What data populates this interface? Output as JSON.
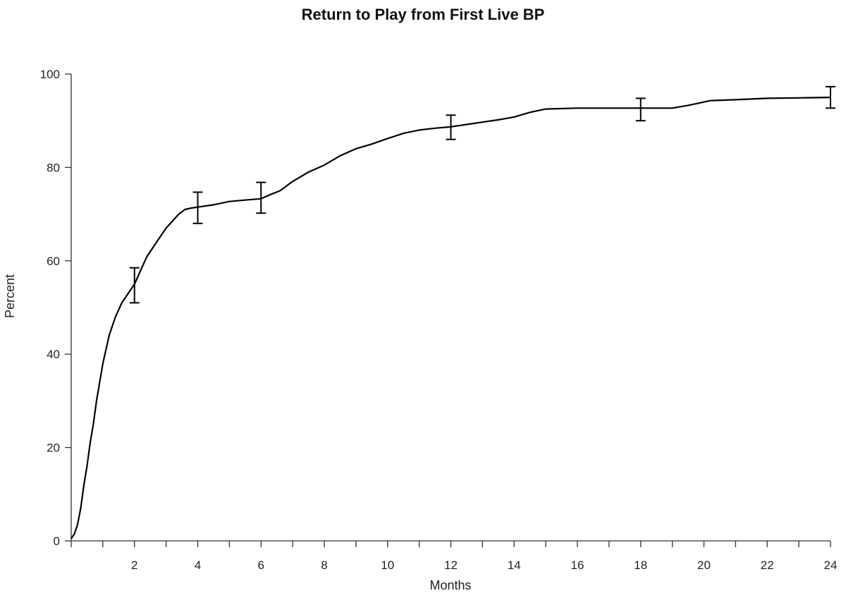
{
  "chart_data": {
    "type": "line",
    "title": "Return to Play from First Live BP",
    "xlabel": "Months",
    "ylabel": "Percent",
    "xlim": [
      0,
      24
    ],
    "ylim": [
      0,
      100
    ],
    "x_ticks_labeled": [
      2,
      4,
      6,
      8,
      10,
      12,
      14,
      16,
      18,
      20,
      22,
      24
    ],
    "y_ticks": [
      0,
      20,
      40,
      60,
      80,
      100
    ],
    "grid": false,
    "line_color": "#000000",
    "series": [
      {
        "x": [
          0,
          0.1,
          0.2,
          0.3,
          0.4,
          0.5,
          0.6,
          0.7,
          0.8,
          0.9,
          1.0,
          1.2,
          1.4,
          1.6,
          1.8,
          2.0,
          2.2,
          2.4,
          2.6,
          2.8,
          3.0,
          3.2,
          3.4,
          3.6,
          3.8,
          4.0,
          4.5,
          5.0,
          5.5,
          6.0,
          6.3,
          6.6,
          7.0,
          7.5,
          8.0,
          8.5,
          9.0,
          9.5,
          10.0,
          10.5,
          11.0,
          11.5,
          12.0,
          12.5,
          13.0,
          13.5,
          14.0,
          14.5,
          15.0,
          16.0,
          17.0,
          18.0,
          19.0,
          19.5,
          20.0,
          20.2,
          21.0,
          22.0,
          23.0,
          24.0
        ],
        "y": [
          0.5,
          1.5,
          3.5,
          7,
          12,
          16,
          21,
          25,
          30,
          34,
          38,
          44,
          48,
          51,
          53,
          55,
          58,
          61,
          63,
          65,
          67,
          68.5,
          70,
          71,
          71.3,
          71.5,
          72,
          72.7,
          73,
          73.3,
          74.2,
          75,
          77,
          79,
          80.5,
          82.5,
          84,
          85,
          86.2,
          87.3,
          88,
          88.4,
          88.7,
          89.2,
          89.7,
          90.2,
          90.8,
          91.8,
          92.5,
          92.7,
          92.7,
          92.7,
          92.7,
          93.3,
          94,
          94.3,
          94.5,
          94.8,
          94.9,
          95
        ]
      }
    ],
    "error_bars": [
      {
        "x": 2,
        "y": 54.5,
        "low": 51,
        "high": 58.5
      },
      {
        "x": 4,
        "y": 71.3,
        "low": 68,
        "high": 74.7
      },
      {
        "x": 6,
        "y": 73.3,
        "low": 70.2,
        "high": 76.8
      },
      {
        "x": 12,
        "y": 88.7,
        "low": 86,
        "high": 91.2
      },
      {
        "x": 18,
        "y": 92.7,
        "low": 90,
        "high": 94.8
      },
      {
        "x": 24,
        "y": 95,
        "low": 92.7,
        "high": 97.3
      }
    ]
  }
}
